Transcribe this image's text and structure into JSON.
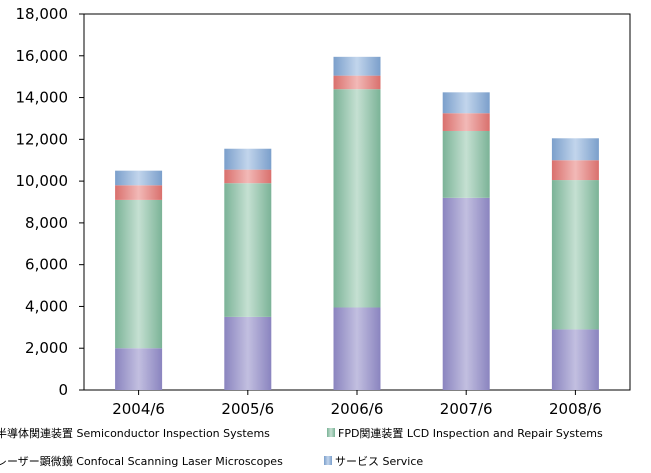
{
  "chart_data": {
    "type": "bar",
    "stacked": true,
    "categories": [
      "2004/6",
      "2005/6",
      "2006/6",
      "2007/6",
      "2008/6"
    ],
    "ylim": [
      0,
      18000
    ],
    "yticks": [
      0,
      2000,
      4000,
      6000,
      8000,
      10000,
      12000,
      14000,
      16000,
      18000
    ],
    "ytick_labels": [
      "0",
      "2,000",
      "4,000",
      "6,000",
      "8,000",
      "10,000",
      "12,000",
      "14,000",
      "16,000",
      "18,000"
    ],
    "grid": false,
    "legend_position": "bottom",
    "series": [
      {
        "name": "半導体関連装置 Semiconductor Inspection Systems",
        "color": "#9b96c8",
        "values": [
          2000,
          3500,
          3950,
          9200,
          2900
        ]
      },
      {
        "name": "FPD関連装置 LCD Inspection and Repair Systems",
        "color": "#8fbfa8",
        "values": [
          7100,
          6400,
          10450,
          3200,
          7150
        ]
      },
      {
        "name": "レーザー顕微鏡 Confocal Scanning Laser Microscopes",
        "color": "#e28c8a",
        "values": [
          700,
          650,
          650,
          850,
          950
        ]
      },
      {
        "name": "サービス Service",
        "color": "#8faed3",
        "values": [
          700,
          1000,
          900,
          1000,
          1050
        ]
      }
    ]
  }
}
